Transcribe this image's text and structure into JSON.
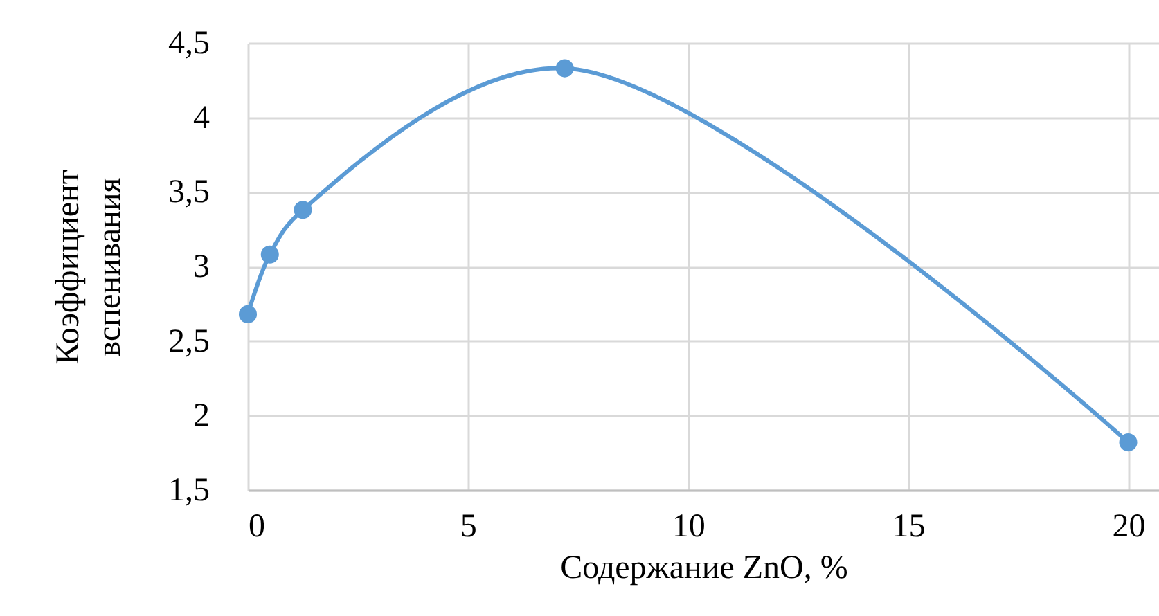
{
  "chart_data": {
    "type": "line",
    "xlabel": "Содержание ZnO, %",
    "ylabel": "Коэффициент вспенивания",
    "x": [
      0,
      0.5,
      1.25,
      7.2,
      20
    ],
    "series": [
      {
        "color": "#5b9bd5",
        "values": [
          2.68,
          3.08,
          3.38,
          4.33,
          1.82
        ]
      }
    ],
    "xlim": [
      0,
      20.7
    ],
    "xticks": [
      0,
      5,
      10,
      15,
      20
    ],
    "ylim": [
      1.5,
      4.5
    ],
    "yticks": [
      {
        "value": 1.5,
        "label": "1,5"
      },
      2,
      {
        "value": 2.5,
        "label": "2,5"
      },
      3,
      {
        "value": 3.5,
        "label": "3,5"
      },
      4,
      {
        "value": 4.5,
        "label": "4,5"
      }
    ],
    "grid": true,
    "marker": "circle",
    "line_style": "solid"
  }
}
